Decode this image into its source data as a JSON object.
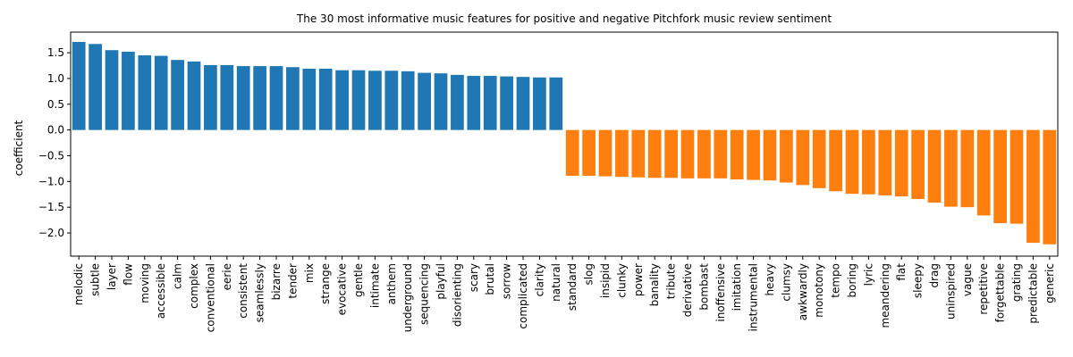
{
  "chart_data": {
    "type": "bar",
    "title": "The 30 most informative music features for positive and negative Pitchfork music review sentiment",
    "xlabel": "",
    "ylabel": "coefficient",
    "ylim": [
      -2.45,
      1.9
    ],
    "yticks": [
      -2.0,
      -1.5,
      -1.0,
      -0.5,
      0.0,
      0.5,
      1.0,
      1.5
    ],
    "ytick_labels": [
      "−2.0",
      "−1.5",
      "−1.0",
      "−0.5",
      "0.0",
      "0.5",
      "1.0",
      "1.5"
    ],
    "grid": false,
    "colors": {
      "positive": "#1f77b4",
      "negative": "#ff7f0e"
    },
    "categories": [
      "melodic",
      "subtle",
      "layer",
      "flow",
      "moving",
      "accessible",
      "calm",
      "complex",
      "conventional",
      "eerie",
      "consistent",
      "seamlessly",
      "bizarre",
      "tender",
      "mix",
      "strange",
      "evocative",
      "gentle",
      "intimate",
      "anthem",
      "underground",
      "sequencing",
      "playful",
      "disorienting",
      "scary",
      "brutal",
      "sorrow",
      "complicated",
      "clarity",
      "natural",
      "standard",
      "slog",
      "insipid",
      "clunky",
      "power",
      "banality",
      "tribute",
      "derivative",
      "bombast",
      "inoffensive",
      "imitation",
      "instrumental",
      "heavy",
      "clumsy",
      "awkwardly",
      "monotony",
      "tempo",
      "boring",
      "lyric",
      "meandering",
      "flat",
      "sleepy",
      "drag",
      "uninspired",
      "vague",
      "repetitive",
      "forgettable",
      "grating",
      "predictable",
      "generic"
    ],
    "series": [
      {
        "color_key": "positive",
        "values": [
          1.71,
          1.67,
          1.55,
          1.52,
          1.45,
          1.44,
          1.36,
          1.33,
          1.26,
          1.26,
          1.24,
          1.24,
          1.24,
          1.22,
          1.19,
          1.19,
          1.16,
          1.16,
          1.15,
          1.15,
          1.14,
          1.11,
          1.1,
          1.07,
          1.05,
          1.05,
          1.04,
          1.03,
          1.02,
          1.02,
          null,
          null,
          null,
          null,
          null,
          null,
          null,
          null,
          null,
          null,
          null,
          null,
          null,
          null,
          null,
          null,
          null,
          null,
          null,
          null,
          null,
          null,
          null,
          null,
          null,
          null,
          null,
          null,
          null,
          null
        ]
      },
      {
        "color_key": "negative",
        "values": [
          null,
          null,
          null,
          null,
          null,
          null,
          null,
          null,
          null,
          null,
          null,
          null,
          null,
          null,
          null,
          null,
          null,
          null,
          null,
          null,
          null,
          null,
          null,
          null,
          null,
          null,
          null,
          null,
          null,
          null,
          -0.89,
          -0.89,
          -0.9,
          -0.91,
          -0.92,
          -0.93,
          -0.93,
          -0.94,
          -0.94,
          -0.94,
          -0.96,
          -0.97,
          -0.98,
          -1.02,
          -1.07,
          -1.13,
          -1.19,
          -1.24,
          -1.25,
          -1.27,
          -1.29,
          -1.34,
          -1.41,
          -1.49,
          -1.5,
          -1.66,
          -1.81,
          -1.82,
          -2.19,
          -2.22
        ]
      }
    ]
  }
}
